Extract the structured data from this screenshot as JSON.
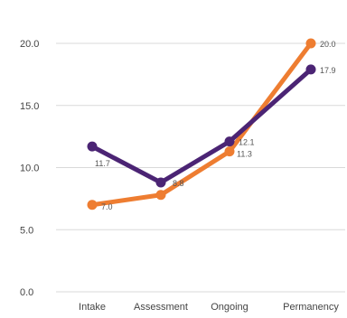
{
  "chart_data": {
    "type": "line",
    "title": "",
    "xlabel": "",
    "ylabel": "",
    "categories": [
      "Intake",
      "Assessment",
      "Ongoing",
      "Permanency"
    ],
    "y_ticks": [
      "0.0",
      "5.0",
      "10.0",
      "15.0",
      "20.0"
    ],
    "ylim": [
      0,
      20
    ],
    "grid": true,
    "legend": "none",
    "series": [
      {
        "color": "#ee7d31",
        "values": [
          7.0,
          7.8,
          11.3,
          20.0
        ],
        "labels": [
          "7.0",
          "",
          "11.3",
          "20.0"
        ]
      },
      {
        "color": "#4b2474",
        "values": [
          11.7,
          8.8,
          12.1,
          17.9
        ],
        "labels": [
          "11.7",
          "8.8",
          "12.1",
          "17.9"
        ]
      }
    ]
  }
}
